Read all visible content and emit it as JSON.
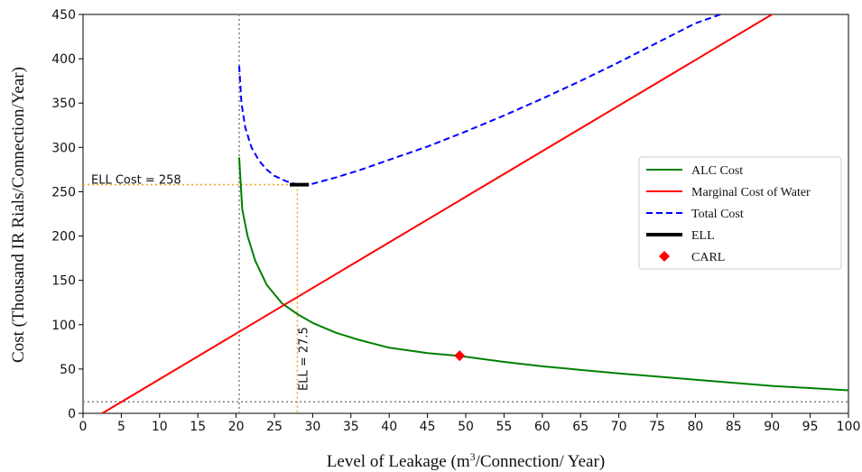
{
  "chart_data": {
    "type": "line",
    "xlabel_main": "Level of Leakage (m",
    "xlabel_sup": "3",
    "xlabel_rest": "/Connection/ Year)",
    "ylabel": "Cost (Thousand IR Rials/Connection/Year)",
    "xlim": [
      0,
      100
    ],
    "ylim": [
      0,
      450
    ],
    "xticks": [
      0,
      5,
      10,
      15,
      20,
      25,
      30,
      35,
      40,
      45,
      50,
      55,
      60,
      65,
      70,
      75,
      80,
      85,
      90,
      95,
      100
    ],
    "yticks": [
      0,
      50,
      100,
      150,
      200,
      250,
      300,
      350,
      400,
      450
    ],
    "grid": false,
    "legend_position": "center-right",
    "series": [
      {
        "name": "ALC Cost",
        "color": "#008000",
        "style": "solid",
        "x": [
          20.4,
          20.8,
          21.5,
          22.5,
          24,
          26,
          28,
          30,
          33,
          36,
          40,
          45,
          49,
          55,
          60,
          70,
          80,
          90,
          100
        ],
        "y": [
          288,
          230,
          200,
          172,
          145,
          124,
          112,
          102,
          91,
          83,
          74,
          68,
          65,
          58,
          53,
          45,
          38,
          31,
          26
        ]
      },
      {
        "name": "Marginal Cost of Water",
        "color": "#ff0000",
        "style": "solid",
        "x": [
          2.5,
          90
        ],
        "y": [
          0,
          450
        ]
      },
      {
        "name": "Total Cost",
        "color": "#0000ff",
        "style": "dashed",
        "x": [
          20.4,
          20.7,
          21.2,
          22,
          23,
          24,
          25,
          26.5,
          28,
          30,
          33,
          36,
          40,
          45,
          50,
          55,
          60,
          65,
          70,
          75,
          80,
          83.3
        ],
        "y": [
          392,
          350,
          322,
          300,
          285,
          275,
          268,
          262,
          258,
          259,
          266,
          274,
          286,
          301,
          318,
          336,
          355,
          375,
          396,
          418,
          440,
          450
        ]
      },
      {
        "name": "ELL",
        "color": "#000000",
        "style": "thick",
        "x": [
          27,
          29.5
        ],
        "y": [
          258,
          258
        ]
      },
      {
        "name": "CARL",
        "color": "#ff0000",
        "style": "diamond",
        "x": [
          49.2
        ],
        "y": [
          65
        ]
      }
    ],
    "reference_lines": {
      "vertical_grey_x": 20.4,
      "horizontal_grey_y": 13,
      "ell_x": 28,
      "ell_cost_y": 258
    },
    "annotations": {
      "ell_cost": "ELL Cost = 258",
      "ell": "ELL = 27.5"
    }
  }
}
